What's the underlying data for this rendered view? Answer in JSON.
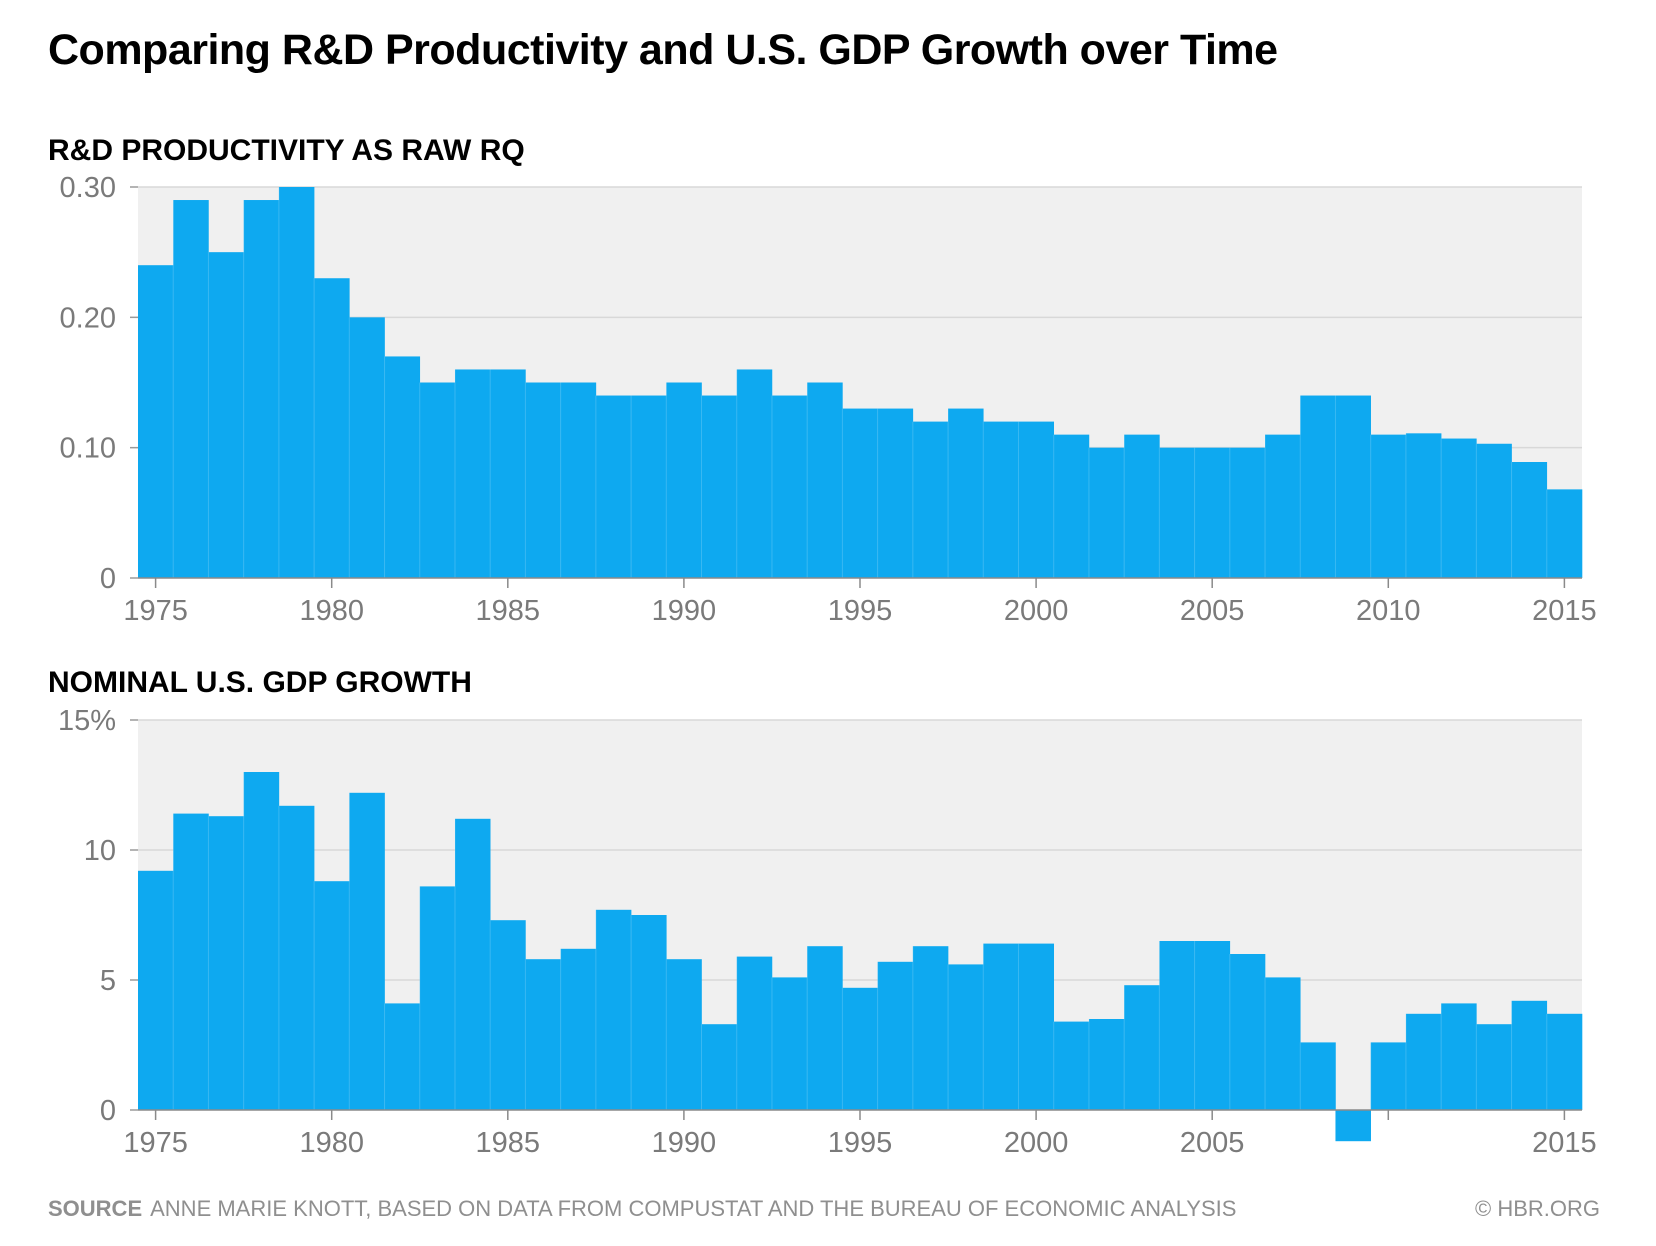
{
  "title": "Comparing R&D Productivity and U.S. GDP Growth over Time",
  "footer": {
    "source_label": "SOURCE",
    "source_text": "ANNE MARIE KNOTT, BASED ON DATA FROM COMPUSTAT AND THE BUREAU OF ECONOMIC ANALYSIS",
    "credit": "© HBR.ORG"
  },
  "colors": {
    "bar": "#0ea9f0",
    "plot_bg": "#f0f0f0",
    "grid": "#d8d8d8",
    "axis_text": "#7a7a7a"
  },
  "chart_data": [
    {
      "type": "bar",
      "title": "R&D PRODUCTIVITY AS RAW RQ",
      "xlabel": "",
      "ylabel": "",
      "ylim": [
        0,
        0.3
      ],
      "yticks": [
        0,
        0.1,
        0.2,
        0.3
      ],
      "ytick_labels": [
        "0",
        "0.10",
        "0.20",
        "0.30"
      ],
      "xtick_labels": [
        "1975",
        "1980",
        "1985",
        "1990",
        "1995",
        "2000",
        "2005",
        "2010",
        "2015"
      ],
      "grid": true,
      "x": [
        1975,
        1976,
        1977,
        1978,
        1979,
        1980,
        1981,
        1982,
        1983,
        1984,
        1985,
        1986,
        1987,
        1988,
        1989,
        1990,
        1991,
        1992,
        1993,
        1994,
        1995,
        1996,
        1997,
        1998,
        1999,
        2000,
        2001,
        2002,
        2003,
        2004,
        2005,
        2006,
        2007,
        2008,
        2009,
        2010,
        2011,
        2012,
        2013,
        2014,
        2015
      ],
      "values": [
        0.24,
        0.29,
        0.25,
        0.29,
        0.3,
        0.23,
        0.2,
        0.17,
        0.15,
        0.16,
        0.16,
        0.15,
        0.15,
        0.14,
        0.14,
        0.15,
        0.14,
        0.16,
        0.14,
        0.15,
        0.13,
        0.13,
        0.12,
        0.13,
        0.12,
        0.12,
        0.11,
        0.1,
        0.11,
        0.1,
        0.1,
        0.1,
        0.11,
        0.14,
        0.14,
        0.11,
        0.111,
        0.107,
        0.103,
        0.089,
        0.068
      ]
    },
    {
      "type": "bar",
      "title": "NOMINAL U.S. GDP GROWTH",
      "xlabel": "",
      "ylabel": "",
      "ylim": [
        -1.5,
        15
      ],
      "yticks": [
        0,
        5,
        10,
        15
      ],
      "ytick_labels": [
        "0",
        "5",
        "10",
        "15%"
      ],
      "xtick_labels": [
        "1975",
        "1980",
        "1985",
        "1990",
        "1995",
        "2000",
        "2005",
        "2015"
      ],
      "grid": true,
      "x": [
        1975,
        1976,
        1977,
        1978,
        1979,
        1980,
        1981,
        1982,
        1983,
        1984,
        1985,
        1986,
        1987,
        1988,
        1989,
        1990,
        1991,
        1992,
        1993,
        1994,
        1995,
        1996,
        1997,
        1998,
        1999,
        2000,
        2001,
        2002,
        2003,
        2004,
        2005,
        2006,
        2007,
        2008,
        2009,
        2010,
        2011,
        2012,
        2013,
        2014,
        2015
      ],
      "values": [
        9.2,
        11.4,
        11.3,
        13.0,
        11.7,
        8.8,
        12.2,
        4.1,
        8.6,
        11.2,
        7.3,
        5.8,
        6.2,
        7.7,
        7.5,
        5.8,
        3.3,
        5.9,
        5.1,
        6.3,
        4.7,
        5.7,
        6.3,
        5.6,
        6.4,
        6.4,
        3.4,
        3.5,
        4.8,
        6.5,
        6.5,
        6.0,
        5.1,
        2.6,
        -1.2,
        2.6,
        3.7,
        4.1,
        3.3,
        4.2,
        3.7
      ]
    }
  ]
}
